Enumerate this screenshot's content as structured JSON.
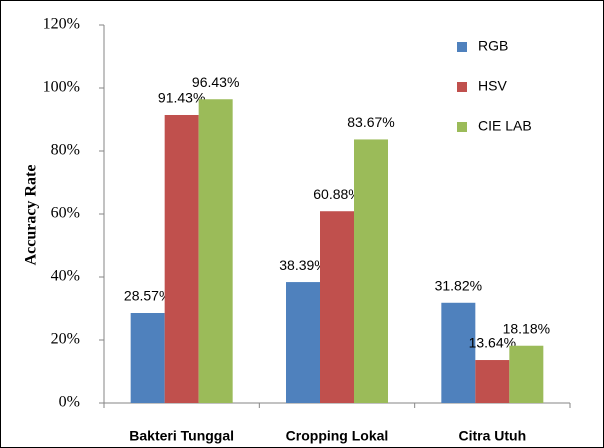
{
  "chart_data": {
    "type": "bar",
    "categories": [
      "Bakteri Tunggal",
      "Cropping Lokal",
      "Citra Utuh"
    ],
    "series": [
      {
        "name": "RGB",
        "color": "#4f81bd",
        "values": [
          28.57,
          38.39,
          31.82
        ],
        "value_labels": [
          "28.57%",
          "38.39%",
          "31.82%"
        ]
      },
      {
        "name": "HSV",
        "color": "#c0504d",
        "values": [
          91.43,
          60.88,
          13.64
        ],
        "value_labels": [
          "91.43%",
          "60.88%",
          "13.64%"
        ]
      },
      {
        "name": "CIE LAB",
        "color": "#9bbb59",
        "values": [
          96.43,
          83.67,
          18.18
        ],
        "value_labels": [
          "96.43%",
          "83.67%",
          "18.18%"
        ]
      }
    ],
    "ylabel": "Accuracy Rate",
    "ylim": [
      0,
      120
    ],
    "yticks": [
      {
        "value": 0,
        "label": "0%"
      },
      {
        "value": 20,
        "label": "20%"
      },
      {
        "value": 40,
        "label": "40%"
      },
      {
        "value": 60,
        "label": "60%"
      },
      {
        "value": 80,
        "label": "80%"
      },
      {
        "value": 100,
        "label": "100%"
      },
      {
        "value": 120,
        "label": "120%"
      }
    ],
    "legend": "right"
  }
}
